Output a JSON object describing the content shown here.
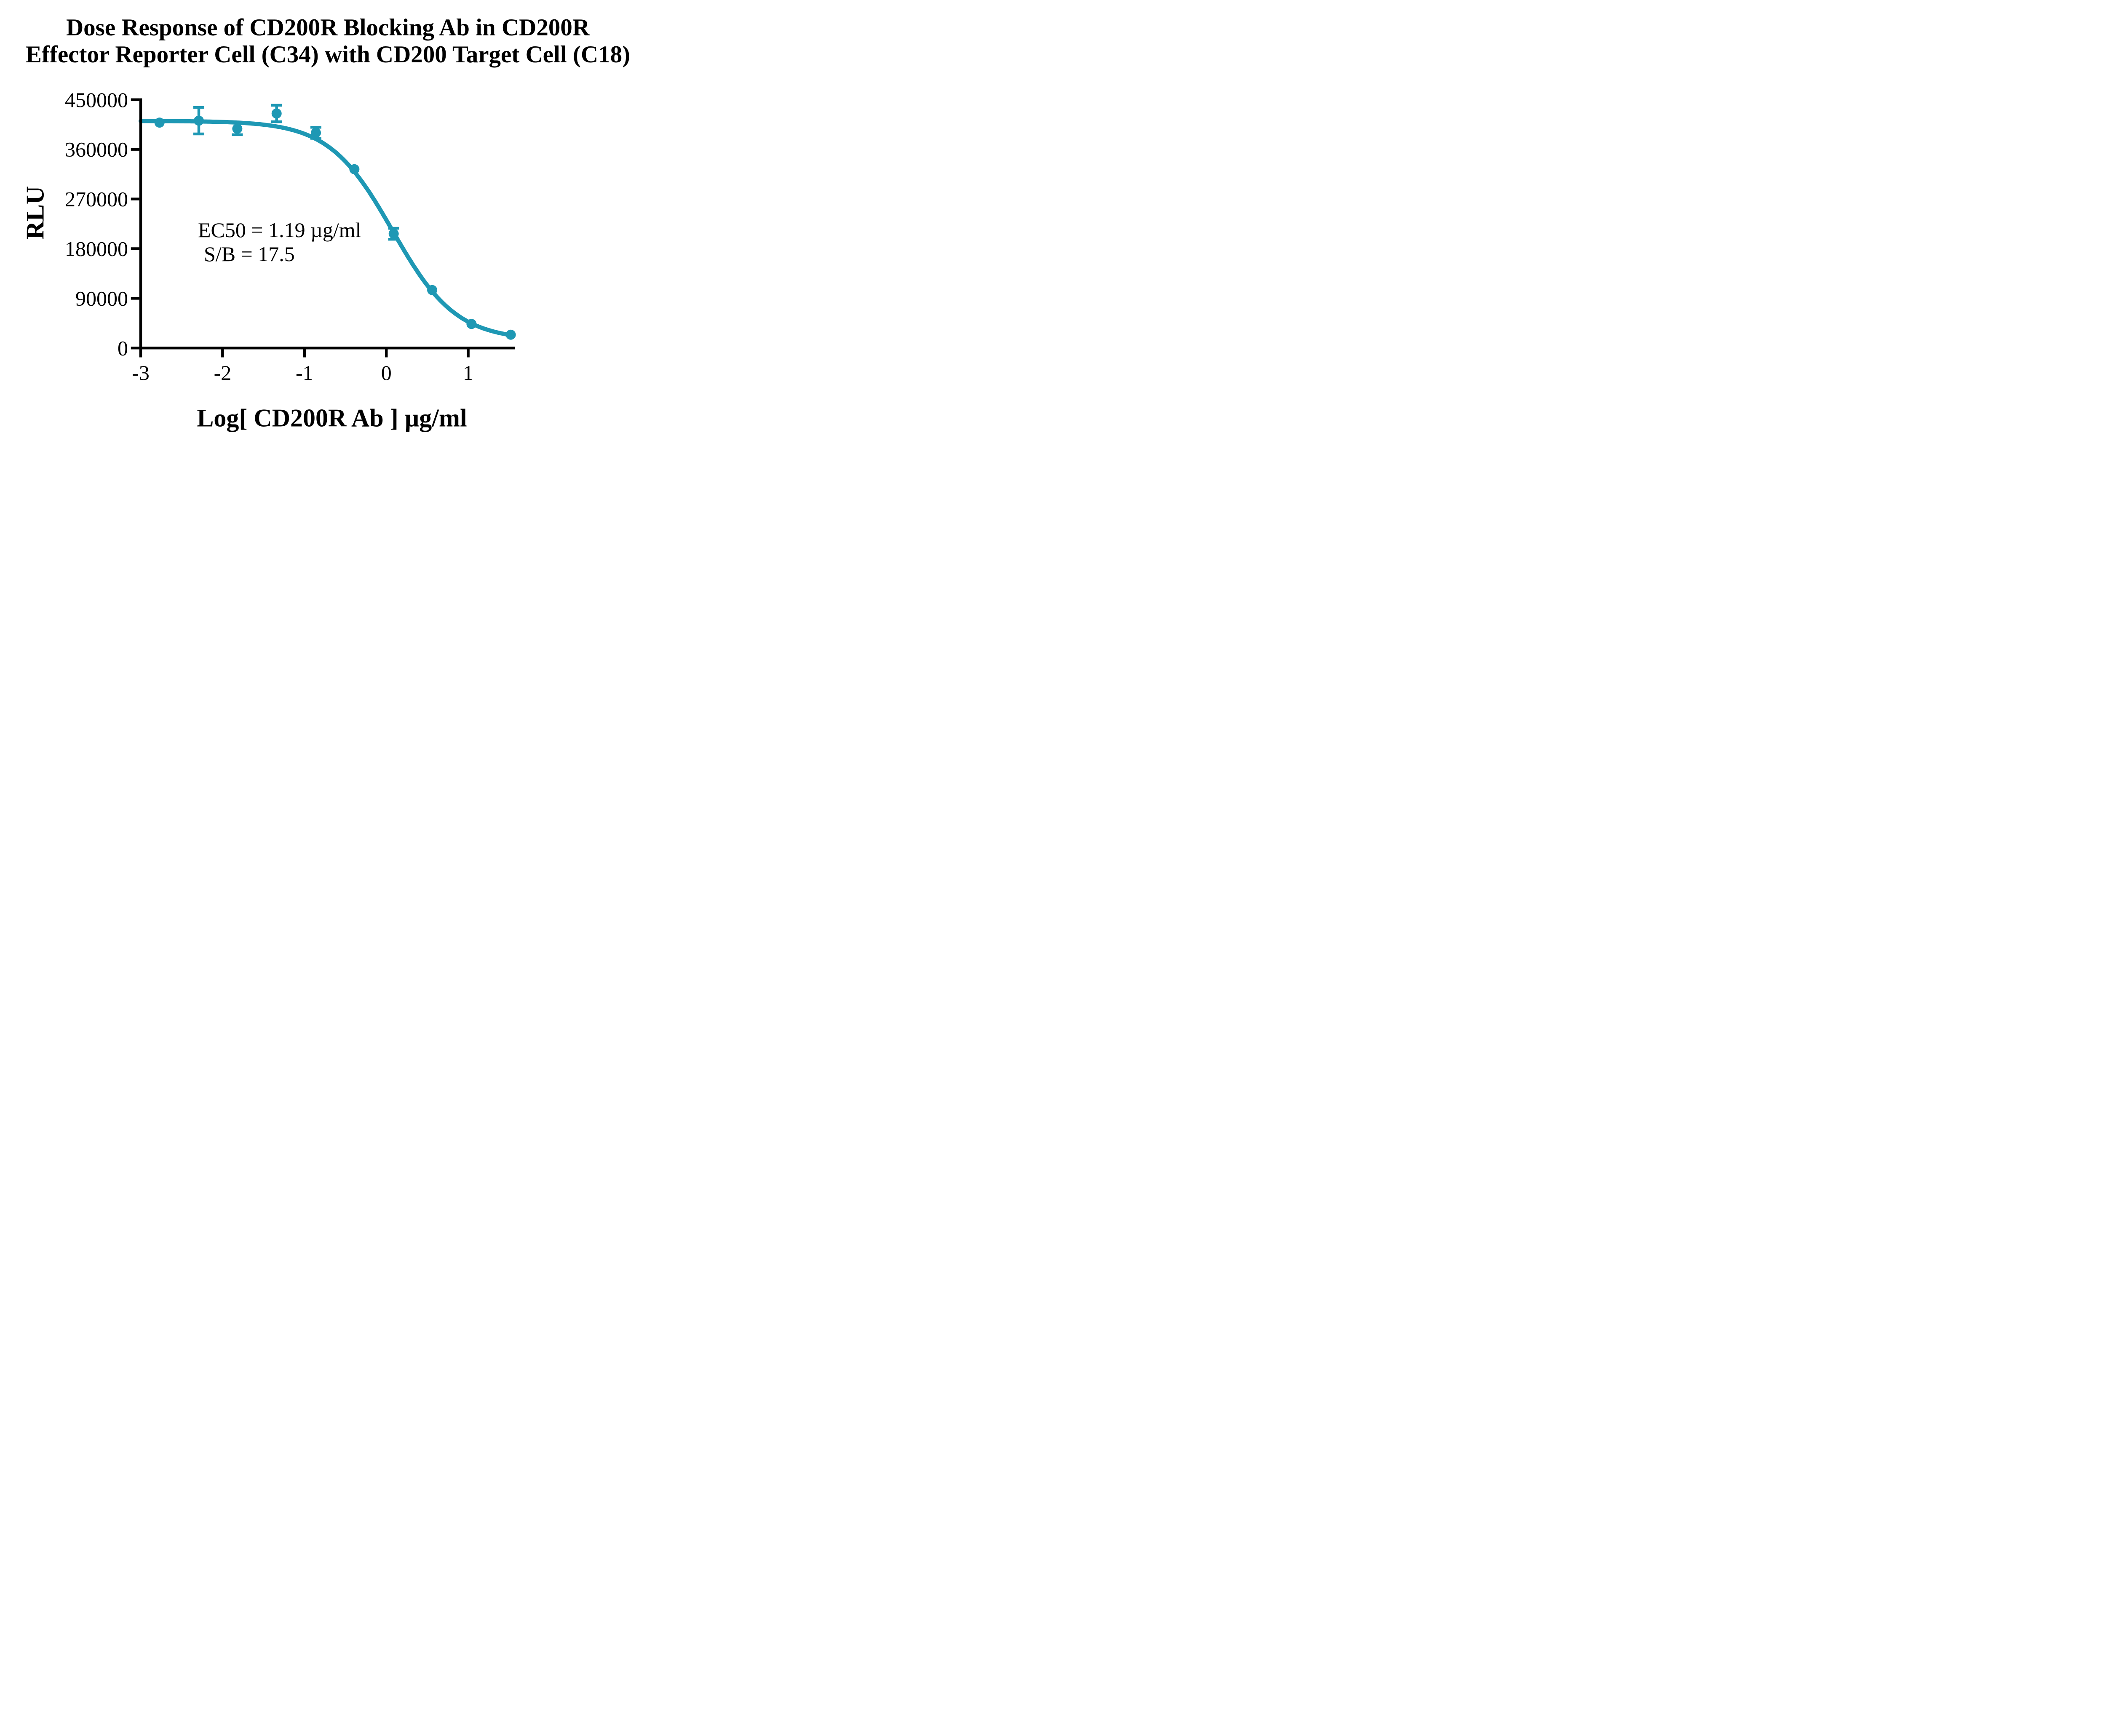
{
  "title": {
    "line1": "Dose Response of CD200R Blocking Ab in CD200R",
    "line2": "Effector Reporter Cell (C34) with CD200 Target Cell (C18)"
  },
  "annotations": {
    "ec50": "EC50 = 1.19 µg/ml",
    "sb": "S/B = 17.5"
  },
  "colors": {
    "curve": "#1E98B4",
    "axis": "#000000",
    "text": "#000000",
    "background": "#FFFFFF"
  },
  "chart_data": {
    "type": "scatter",
    "title": "Dose Response of CD200R Blocking Ab in CD200R Effector Reporter Cell (C34) with CD200 Target Cell (C18)",
    "xlabel": "Log[ CD200R Ab ] µg/ml",
    "ylabel": "RLU",
    "xlim": [
      -3,
      1.62
    ],
    "ylim": [
      0,
      450000
    ],
    "xticks": [
      "-3",
      "-2",
      "-1",
      "0",
      "1"
    ],
    "xtick_values": [
      -3,
      -2,
      -1,
      0,
      1
    ],
    "yticks": [
      "450000",
      "360000",
      "270000",
      "180000",
      "90000",
      "0"
    ],
    "ytick_values": [
      450000,
      360000,
      270000,
      180000,
      90000,
      0
    ],
    "grid": false,
    "legend": "none",
    "series": [
      {
        "name": "CD200R Blocking Ab",
        "x": [
          -2.77,
          -2.29,
          -1.82,
          -1.34,
          -0.86,
          -0.39,
          0.09,
          0.56,
          1.04,
          1.52
        ],
        "y": [
          408500,
          412000,
          397500,
          425000,
          390000,
          324000,
          207000,
          105000,
          43500,
          24000
        ],
        "yerr": [
          null,
          24000,
          11000,
          15000,
          10000,
          null,
          10000,
          null,
          null,
          null
        ]
      }
    ],
    "fit_curve": {
      "model": "4PL",
      "top": 411500,
      "bottom": 14000,
      "log_ec50": 0.0755,
      "hill": 1.12,
      "x_start": -3,
      "x_end": 1.52
    },
    "ec50_text": "EC50 = 1.19 µg/ml",
    "sb_text": "S/B = 17.5"
  }
}
